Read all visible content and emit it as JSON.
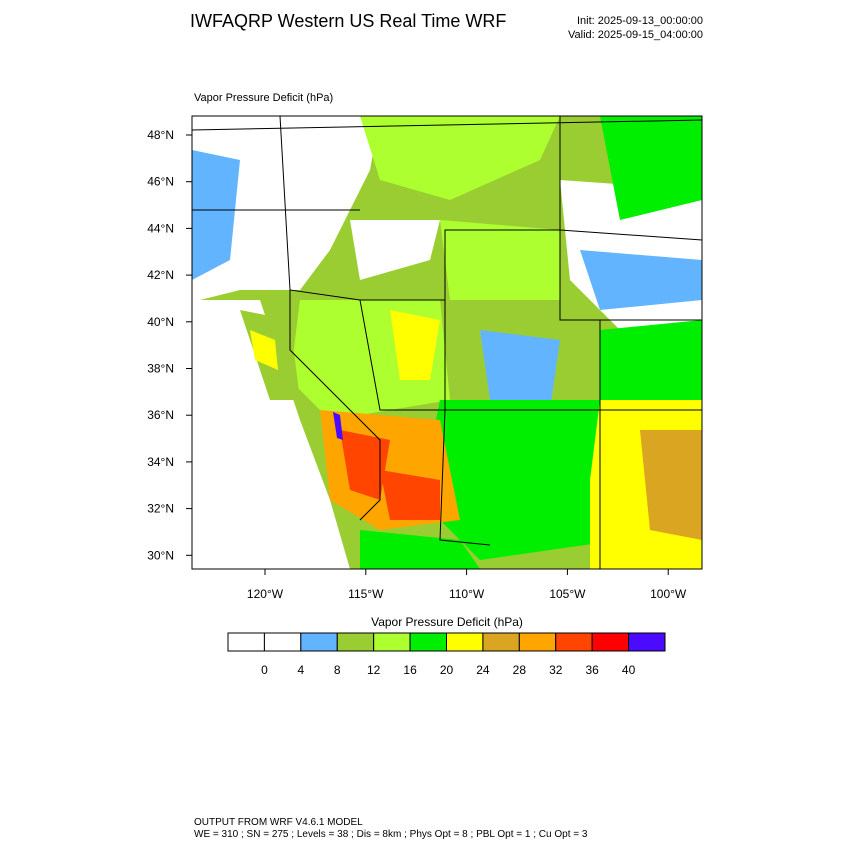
{
  "header": {
    "title": "IWFAQRP Western US Real Time WRF",
    "init": "Init: 2025-09-13_00:00:00",
    "valid": "Valid: 2025-09-15_04:00:00"
  },
  "map": {
    "label": "Vapor Pressure Deficit   (hPa)",
    "lat_ticks": [
      "48°N",
      "46°N",
      "44°N",
      "42°N",
      "40°N",
      "38°N",
      "36°N",
      "34°N",
      "32°N",
      "30°N"
    ],
    "lon_ticks": [
      "120°W",
      "115°W",
      "110°W",
      "105°W",
      "100°W"
    ]
  },
  "colorbar": {
    "title": "Vapor Pressure Deficit  (hPa)",
    "colors": [
      "#ffffff",
      "#ffffff",
      "#63b4ff",
      "#9acd32",
      "#adff2f",
      "#00ee00",
      "#ffff00",
      "#daa520",
      "#ffa500",
      "#ff4500",
      "#ff0000",
      "#4b0bff"
    ],
    "ticks": [
      "0",
      "4",
      "8",
      "12",
      "16",
      "20",
      "24",
      "28",
      "32",
      "36",
      "40"
    ]
  },
  "footer": {
    "line1": "OUTPUT FROM WRF V4.6.1 MODEL",
    "line2": "WE = 310 ; SN = 275 ; Levels = 38 ; Dis = 8km ; Phys Opt = 8 ; PBL Opt = 1 ; Cu Opt = 3"
  }
}
